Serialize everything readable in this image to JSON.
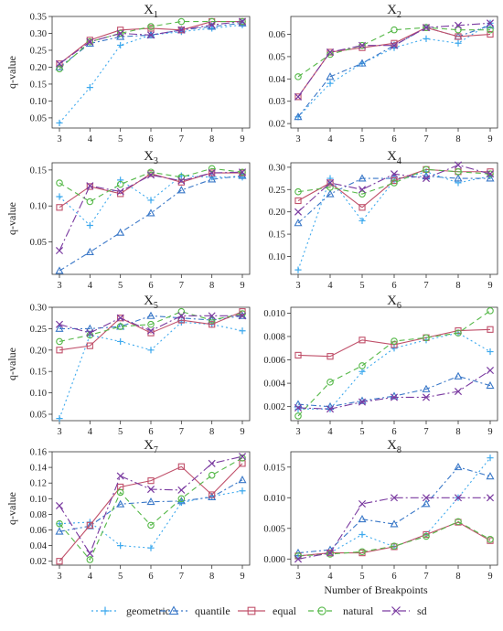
{
  "figure": {
    "legend": [
      {
        "name": "geometric",
        "color": "#3da9ee",
        "marker": "plus",
        "dash": "2,3"
      },
      {
        "name": "quantile",
        "color": "#3a78c8",
        "marker": "triangle",
        "dash": "6,3,2,3"
      },
      {
        "name": "equal",
        "color": "#c0506a",
        "marker": "square",
        "dash": ""
      },
      {
        "name": "natural",
        "color": "#55b848",
        "marker": "circle",
        "dash": "6,4"
      },
      {
        "name": "sd",
        "color": "#7a3aa0",
        "marker": "x",
        "dash": "9,3,2,3"
      }
    ]
  },
  "chart_data": [
    {
      "type": "line",
      "title": "X1",
      "x": [
        3,
        4,
        5,
        6,
        7,
        8,
        9
      ],
      "xticks": [
        "3",
        "4",
        "5",
        "6",
        "7",
        "8",
        "9"
      ],
      "ylabel": "q-value",
      "xlabel": "",
      "ylim": [
        0.02,
        0.35
      ],
      "yticks": [
        "0.05",
        "0.10",
        "0.15",
        "0.20",
        "0.25",
        "0.30",
        "0.35"
      ],
      "ytickvals": [
        0.05,
        0.1,
        0.15,
        0.2,
        0.25,
        0.3,
        0.35
      ],
      "series": [
        {
          "name": "geometric",
          "values": [
            0.035,
            0.14,
            0.265,
            0.295,
            0.305,
            0.315,
            0.325
          ]
        },
        {
          "name": "quantile",
          "values": [
            0.2,
            0.27,
            0.29,
            0.295,
            0.31,
            0.32,
            0.33
          ]
        },
        {
          "name": "equal",
          "values": [
            0.21,
            0.28,
            0.31,
            0.315,
            0.31,
            0.335,
            0.335
          ]
        },
        {
          "name": "natural",
          "values": [
            0.195,
            0.275,
            0.3,
            0.32,
            0.335,
            0.335,
            0.335
          ]
        },
        {
          "name": "sd",
          "values": [
            0.21,
            0.275,
            0.3,
            0.295,
            0.31,
            0.325,
            0.335
          ]
        }
      ]
    },
    {
      "type": "line",
      "title": "X2",
      "x": [
        3,
        4,
        5,
        6,
        7,
        8,
        9
      ],
      "xticks": [
        "3",
        "4",
        "5",
        "6",
        "7",
        "8",
        "9"
      ],
      "ylabel": "",
      "xlabel": "",
      "ylim": [
        0.018,
        0.068
      ],
      "yticks": [
        "0.02",
        "0.03",
        "0.04",
        "0.05",
        "0.06"
      ],
      "ytickvals": [
        0.02,
        0.03,
        0.04,
        0.05,
        0.06
      ],
      "series": [
        {
          "name": "geometric",
          "values": [
            0.023,
            0.038,
            0.047,
            0.054,
            0.058,
            0.056,
            0.065
          ]
        },
        {
          "name": "quantile",
          "values": [
            0.023,
            0.041,
            0.047,
            0.055,
            0.063,
            0.059,
            0.064
          ]
        },
        {
          "name": "equal",
          "values": [
            0.032,
            0.052,
            0.054,
            0.056,
            0.063,
            0.059,
            0.06
          ]
        },
        {
          "name": "natural",
          "values": [
            0.041,
            0.051,
            0.055,
            0.062,
            0.063,
            0.062,
            0.062
          ]
        },
        {
          "name": "sd",
          "values": [
            0.032,
            0.052,
            0.055,
            0.055,
            0.063,
            0.064,
            0.065
          ]
        }
      ]
    },
    {
      "type": "line",
      "title": "X3",
      "x": [
        3,
        4,
        5,
        6,
        7,
        8,
        9
      ],
      "xticks": [
        "3",
        "4",
        "5",
        "6",
        "7",
        "8",
        "9"
      ],
      "ylabel": "q-value",
      "xlabel": "",
      "ylim": [
        0.005,
        0.16
      ],
      "yticks": [
        "0.05",
        "0.10",
        "0.15"
      ],
      "ytickvals": [
        0.05,
        0.1,
        0.15
      ],
      "series": [
        {
          "name": "geometric",
          "values": [
            0.113,
            0.073,
            0.136,
            0.108,
            0.142,
            0.14,
            0.14
          ]
        },
        {
          "name": "quantile",
          "values": [
            0.01,
            0.036,
            0.063,
            0.09,
            0.122,
            0.137,
            0.142
          ]
        },
        {
          "name": "equal",
          "values": [
            0.098,
            0.127,
            0.117,
            0.145,
            0.133,
            0.146,
            0.146
          ]
        },
        {
          "name": "natural",
          "values": [
            0.132,
            0.106,
            0.13,
            0.147,
            0.14,
            0.152,
            0.147
          ]
        },
        {
          "name": "sd",
          "values": [
            0.038,
            0.128,
            0.12,
            0.143,
            0.135,
            0.146,
            0.147
          ]
        }
      ]
    },
    {
      "type": "line",
      "title": "X4",
      "x": [
        3,
        4,
        5,
        6,
        7,
        8,
        9
      ],
      "xticks": [
        "3",
        "4",
        "5",
        "6",
        "7",
        "8",
        "9"
      ],
      "ylabel": "",
      "xlabel": "",
      "ylim": [
        0.06,
        0.31
      ],
      "yticks": [
        "0.10",
        "0.15",
        "0.20",
        "0.25",
        "0.30"
      ],
      "ytickvals": [
        0.1,
        0.15,
        0.2,
        0.25,
        0.3
      ],
      "series": [
        {
          "name": "geometric",
          "values": [
            0.07,
            0.275,
            0.18,
            0.27,
            0.29,
            0.265,
            0.28
          ]
        },
        {
          "name": "quantile",
          "values": [
            0.175,
            0.24,
            0.275,
            0.275,
            0.28,
            0.275,
            0.275
          ]
        },
        {
          "name": "equal",
          "values": [
            0.225,
            0.265,
            0.21,
            0.27,
            0.295,
            0.29,
            0.29
          ]
        },
        {
          "name": "natural",
          "values": [
            0.245,
            0.255,
            0.24,
            0.265,
            0.295,
            0.29,
            0.285
          ]
        },
        {
          "name": "sd",
          "values": [
            0.2,
            0.265,
            0.25,
            0.285,
            0.275,
            0.305,
            0.285
          ]
        }
      ]
    },
    {
      "type": "line",
      "title": "X5",
      "x": [
        3,
        4,
        5,
        6,
        7,
        8,
        9
      ],
      "xticks": [
        "3",
        "4",
        "5",
        "6",
        "7",
        "8",
        "9"
      ],
      "ylabel": "q-value",
      "xlabel": "",
      "ylim": [
        0.035,
        0.3
      ],
      "yticks": [
        "0.05",
        "0.10",
        "0.15",
        "0.20",
        "0.25",
        "0.30"
      ],
      "ytickvals": [
        0.05,
        0.1,
        0.15,
        0.2,
        0.25,
        0.3
      ],
      "series": [
        {
          "name": "geometric",
          "values": [
            0.04,
            0.235,
            0.22,
            0.2,
            0.265,
            0.26,
            0.245
          ]
        },
        {
          "name": "quantile",
          "values": [
            0.25,
            0.25,
            0.255,
            0.28,
            0.275,
            0.27,
            0.28
          ]
        },
        {
          "name": "equal",
          "values": [
            0.2,
            0.21,
            0.275,
            0.24,
            0.27,
            0.26,
            0.29
          ]
        },
        {
          "name": "natural",
          "values": [
            0.22,
            0.235,
            0.255,
            0.26,
            0.29,
            0.27,
            0.285
          ]
        },
        {
          "name": "sd",
          "values": [
            0.26,
            0.24,
            0.275,
            0.245,
            0.28,
            0.28,
            0.28
          ]
        }
      ]
    },
    {
      "type": "line",
      "title": "X6",
      "x": [
        3,
        4,
        5,
        6,
        7,
        8,
        9
      ],
      "xticks": [
        "3",
        "4",
        "5",
        "6",
        "7",
        "8",
        "9"
      ],
      "ylabel": "",
      "xlabel": "",
      "ylim": [
        0.0008,
        0.0105
      ],
      "yticks": [
        "0.002",
        "0.004",
        "0.006",
        "0.008",
        "0.010"
      ],
      "ytickvals": [
        0.002,
        0.004,
        0.006,
        0.008,
        0.01
      ],
      "series": [
        {
          "name": "geometric",
          "values": [
            0.0018,
            0.0018,
            0.005,
            0.007,
            0.0077,
            0.0083,
            0.0067
          ]
        },
        {
          "name": "quantile",
          "values": [
            0.0022,
            0.002,
            0.0025,
            0.0029,
            0.0035,
            0.0046,
            0.0038
          ]
        },
        {
          "name": "equal",
          "values": [
            0.0064,
            0.0063,
            0.0077,
            0.0073,
            0.0079,
            0.0085,
            0.0086
          ]
        },
        {
          "name": "natural",
          "values": [
            0.0012,
            0.0041,
            0.0055,
            0.0076,
            0.0079,
            0.0083,
            0.0102
          ]
        },
        {
          "name": "sd",
          "values": [
            0.0019,
            0.0018,
            0.0024,
            0.0028,
            0.0028,
            0.0033,
            0.0051
          ]
        }
      ]
    },
    {
      "type": "line",
      "title": "X7",
      "x": [
        3,
        4,
        5,
        6,
        7,
        8,
        9
      ],
      "xticks": [
        "3",
        "4",
        "5",
        "6",
        "7",
        "8",
        "9"
      ],
      "ylabel": "q-value",
      "xlabel": "",
      "ylim": [
        0.015,
        0.16
      ],
      "yticks": [
        "0.02",
        "0.04",
        "0.06",
        "0.08",
        "0.10",
        "0.12",
        "0.14",
        "0.16"
      ],
      "ytickvals": [
        0.02,
        0.04,
        0.06,
        0.08,
        0.1,
        0.12,
        0.14,
        0.16
      ],
      "series": [
        {
          "name": "geometric",
          "values": [
            0.068,
            0.07,
            0.04,
            0.037,
            0.095,
            0.103,
            0.11
          ]
        },
        {
          "name": "quantile",
          "values": [
            0.058,
            0.065,
            0.093,
            0.096,
            0.097,
            0.102,
            0.124
          ]
        },
        {
          "name": "equal",
          "values": [
            0.02,
            0.066,
            0.115,
            0.123,
            0.141,
            0.105,
            0.145
          ]
        },
        {
          "name": "natural",
          "values": [
            0.068,
            0.022,
            0.108,
            0.066,
            0.1,
            0.13,
            0.152
          ]
        },
        {
          "name": "sd",
          "values": [
            0.091,
            0.03,
            0.129,
            0.112,
            0.111,
            0.145,
            0.154
          ]
        }
      ]
    },
    {
      "type": "line",
      "title": "X8",
      "x": [
        3,
        4,
        5,
        6,
        7,
        8,
        9
      ],
      "xticks": [
        "3",
        "4",
        "5",
        "6",
        "7",
        "8",
        "9"
      ],
      "ylabel": "",
      "xlabel": "Number of Breakpoints",
      "ylim": [
        -0.001,
        0.0175
      ],
      "yticks": [
        "0.000",
        "0.005",
        "0.010",
        "0.015"
      ],
      "ytickvals": [
        0.0,
        0.005,
        0.01,
        0.015
      ],
      "series": [
        {
          "name": "geometric",
          "values": [
            0.0005,
            0.001,
            0.004,
            0.002,
            0.004,
            0.01,
            0.0165
          ]
        },
        {
          "name": "quantile",
          "values": [
            0.001,
            0.0015,
            0.0065,
            0.0057,
            0.009,
            0.015,
            0.0135
          ]
        },
        {
          "name": "equal",
          "values": [
            0.0005,
            0.001,
            0.001,
            0.002,
            0.004,
            0.006,
            0.003
          ]
        },
        {
          "name": "natural",
          "values": [
            0.0005,
            0.0008,
            0.0012,
            0.0021,
            0.0037,
            0.0061,
            0.0032
          ]
        },
        {
          "name": "sd",
          "values": [
            0.0,
            0.001,
            0.009,
            0.01,
            0.01,
            0.01,
            0.01
          ]
        }
      ]
    }
  ]
}
